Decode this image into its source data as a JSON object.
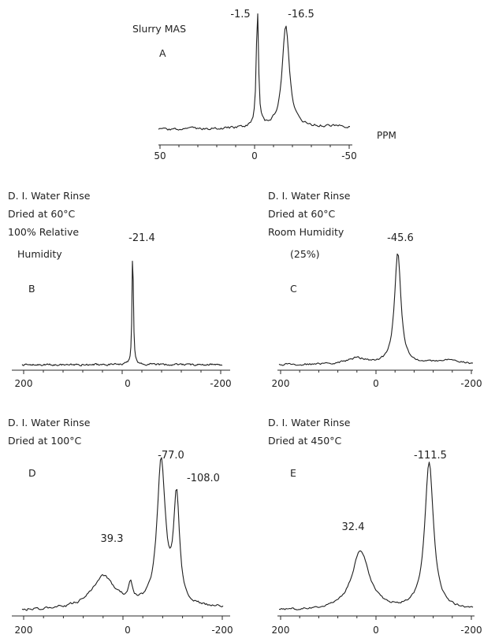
{
  "chart_data": [
    {
      "type": "line",
      "panel": "A",
      "notes": [
        "Slurry MAS",
        "A"
      ],
      "x_unit": "PPM",
      "xlim": [
        50,
        -50
      ],
      "x_ticks": [
        "50",
        "0",
        "-50"
      ],
      "peaks": [
        {
          "x": -1.5,
          "label": "-1.5",
          "height": 1.0,
          "width": 0.7
        },
        {
          "x": -16.5,
          "label": "-16.5",
          "height": 0.86,
          "width": 2.3
        }
      ],
      "baseline_slope": 0.03
    },
    {
      "type": "line",
      "panel": "B",
      "notes": [
        "D. I. Water Rinse",
        "Dried at 60°C",
        "100% Relative",
        "Humidity",
        "B"
      ],
      "xlim": [
        200,
        -200
      ],
      "x_ticks": [
        "200",
        "0",
        "-200"
      ],
      "peaks": [
        {
          "x": -21.4,
          "label": "-21.4",
          "height": 1.0,
          "width": 1.6
        }
      ],
      "baseline_slope": 0.0
    },
    {
      "type": "line",
      "panel": "C",
      "notes": [
        "D. I. Water Rinse",
        "Dried at 60°C",
        "Room Humidity",
        "(25%)",
        "C"
      ],
      "xlim": [
        200,
        -200
      ],
      "x_ticks": [
        "200",
        "0",
        "-200"
      ],
      "peaks": [
        {
          "x": -45.6,
          "label": "-45.6",
          "height": 0.95,
          "width": 8
        },
        {
          "x": 40,
          "label": "",
          "height": 0.05,
          "width": 25
        },
        {
          "x": -150,
          "label": "",
          "height": 0.04,
          "width": 30
        }
      ],
      "baseline_slope": 0.0
    },
    {
      "type": "line",
      "panel": "D",
      "notes": [
        "D. I. Water Rinse",
        "Dried at 100°C",
        "D"
      ],
      "xlim": [
        200,
        -200
      ],
      "x_ticks": [
        "200",
        "0",
        "-200"
      ],
      "peaks": [
        {
          "x": 39.3,
          "label": "39.3",
          "height": 0.22,
          "width": 28
        },
        {
          "x": -77.0,
          "label": "-77.0",
          "height": 0.98,
          "width": 10
        },
        {
          "x": -108.0,
          "label": "-108.0",
          "height": 0.72,
          "width": 7
        },
        {
          "x": -15,
          "label": "",
          "height": 0.12,
          "width": 5
        }
      ],
      "baseline_slope": 0.02
    },
    {
      "type": "line",
      "panel": "E",
      "notes": [
        "D. I. Water Rinse",
        "Dried at 450°C",
        "E"
      ],
      "xlim": [
        200,
        -200
      ],
      "x_ticks": [
        "200",
        "0",
        "-200"
      ],
      "peaks": [
        {
          "x": 32.4,
          "label": "32.4",
          "height": 0.4,
          "width": 22
        },
        {
          "x": -111.5,
          "label": "-111.5",
          "height": 1.0,
          "width": 11
        }
      ],
      "baseline_slope": 0.0
    }
  ]
}
